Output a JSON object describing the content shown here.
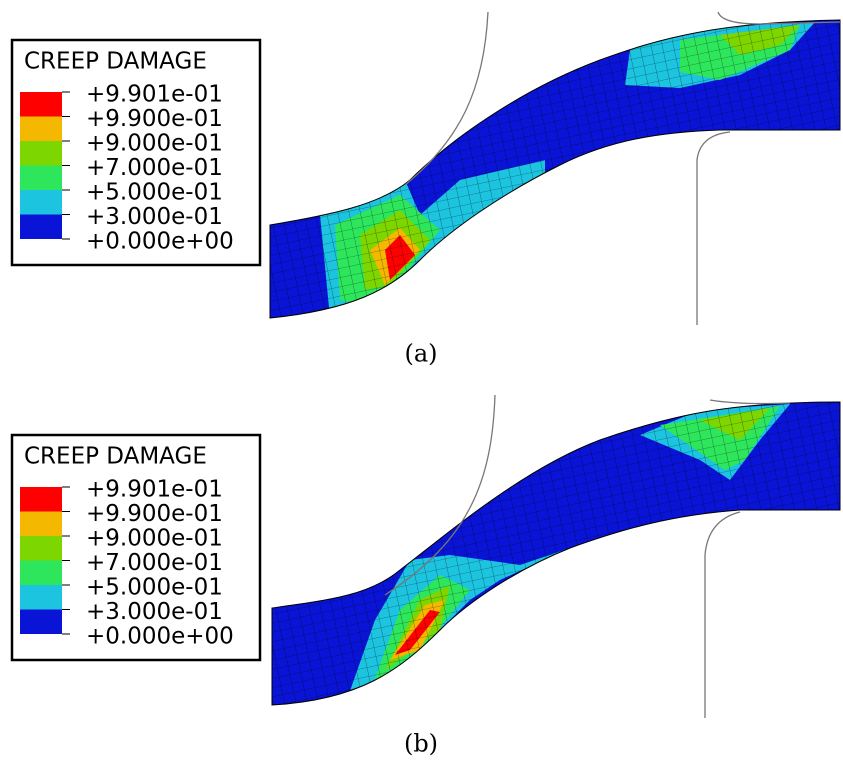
{
  "panels": [
    {
      "legend": {
        "title": "CREEP DAMAGE",
        "labels": [
          "+9.901e-01",
          "+9.900e-01",
          "+9.000e-01",
          "+7.000e-01",
          "+5.000e-01",
          "+3.000e-01",
          "+0.000e+00"
        ],
        "colors": [
          "#ff0000",
          "#f5b800",
          "#7ed600",
          "#2ee65c",
          "#1cc4e0",
          "#0a14d6"
        ]
      },
      "caption": "(a)"
    },
    {
      "legend": {
        "title": "CREEP DAMAGE",
        "labels": [
          "+9.901e-01",
          "+9.900e-01",
          "+9.000e-01",
          "+7.000e-01",
          "+5.000e-01",
          "+3.000e-01",
          "+0.000e+00"
        ],
        "colors": [
          "#ff0000",
          "#f5b800",
          "#7ed600",
          "#2ee65c",
          "#1cc4e0",
          "#0a14d6"
        ]
      },
      "caption": "(b)"
    }
  ]
}
